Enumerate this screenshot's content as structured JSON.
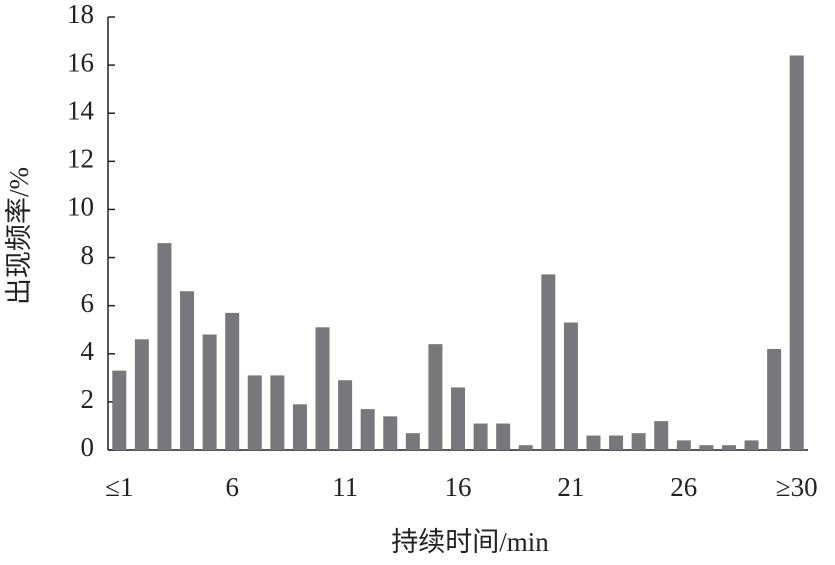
{
  "chart_data": {
    "type": "bar",
    "x_label": "持续时间/min",
    "y_label": "出现频率/%",
    "categories": [
      "≤1",
      null,
      null,
      null,
      null,
      "6",
      null,
      null,
      null,
      null,
      "11",
      null,
      null,
      null,
      null,
      "16",
      null,
      null,
      null,
      null,
      "21",
      null,
      null,
      null,
      null,
      "26",
      null,
      null,
      null,
      null,
      "≥30"
    ],
    "values": [
      3.3,
      4.6,
      8.6,
      6.6,
      4.8,
      5.7,
      3.1,
      3.1,
      1.9,
      5.1,
      2.9,
      1.7,
      1.4,
      0.7,
      4.4,
      2.6,
      1.1,
      1.1,
      0.2,
      7.3,
      5.3,
      0.6,
      0.6,
      0.7,
      1.2,
      0.4,
      0.2,
      0.2,
      0.4,
      4.2,
      16.4
    ],
    "color": "#76787c",
    "ylim": [
      0,
      18
    ],
    "yticks": [
      0,
      2,
      4,
      6,
      8,
      10,
      12,
      14,
      16,
      18
    ]
  }
}
